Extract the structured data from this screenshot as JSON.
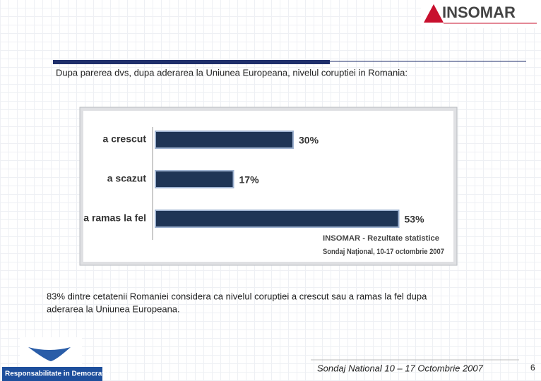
{
  "logo": "INSOMAR",
  "heading": "Dupa parerea dvs, dupa aderarea la Uniunea Europeana, nivelul coruptiei in Romania:",
  "chart_data": {
    "type": "bar",
    "orientation": "horizontal",
    "categories": [
      "a crescut",
      "a scazut",
      "a ramas la fel"
    ],
    "values": [
      30,
      17,
      53
    ],
    "value_labels": [
      "30%",
      "17%",
      "53%"
    ],
    "color": "#1f3556",
    "annotations": [
      "INSOMAR - Rezultate statistice",
      "Sondaj Naţional, 10-17 octombrie 2007"
    ]
  },
  "caption": [
    "83% dintre cetatenii Romaniei considera ca nivelul coruptiei a crescut sau a ramas la fel dupa",
    "aderarea la Uniunea Europeana."
  ],
  "footer_logo": "Responsabilitate in Democratie",
  "footer": "Sondaj National 10 – 17 Octombrie 2007",
  "page_number": "6"
}
